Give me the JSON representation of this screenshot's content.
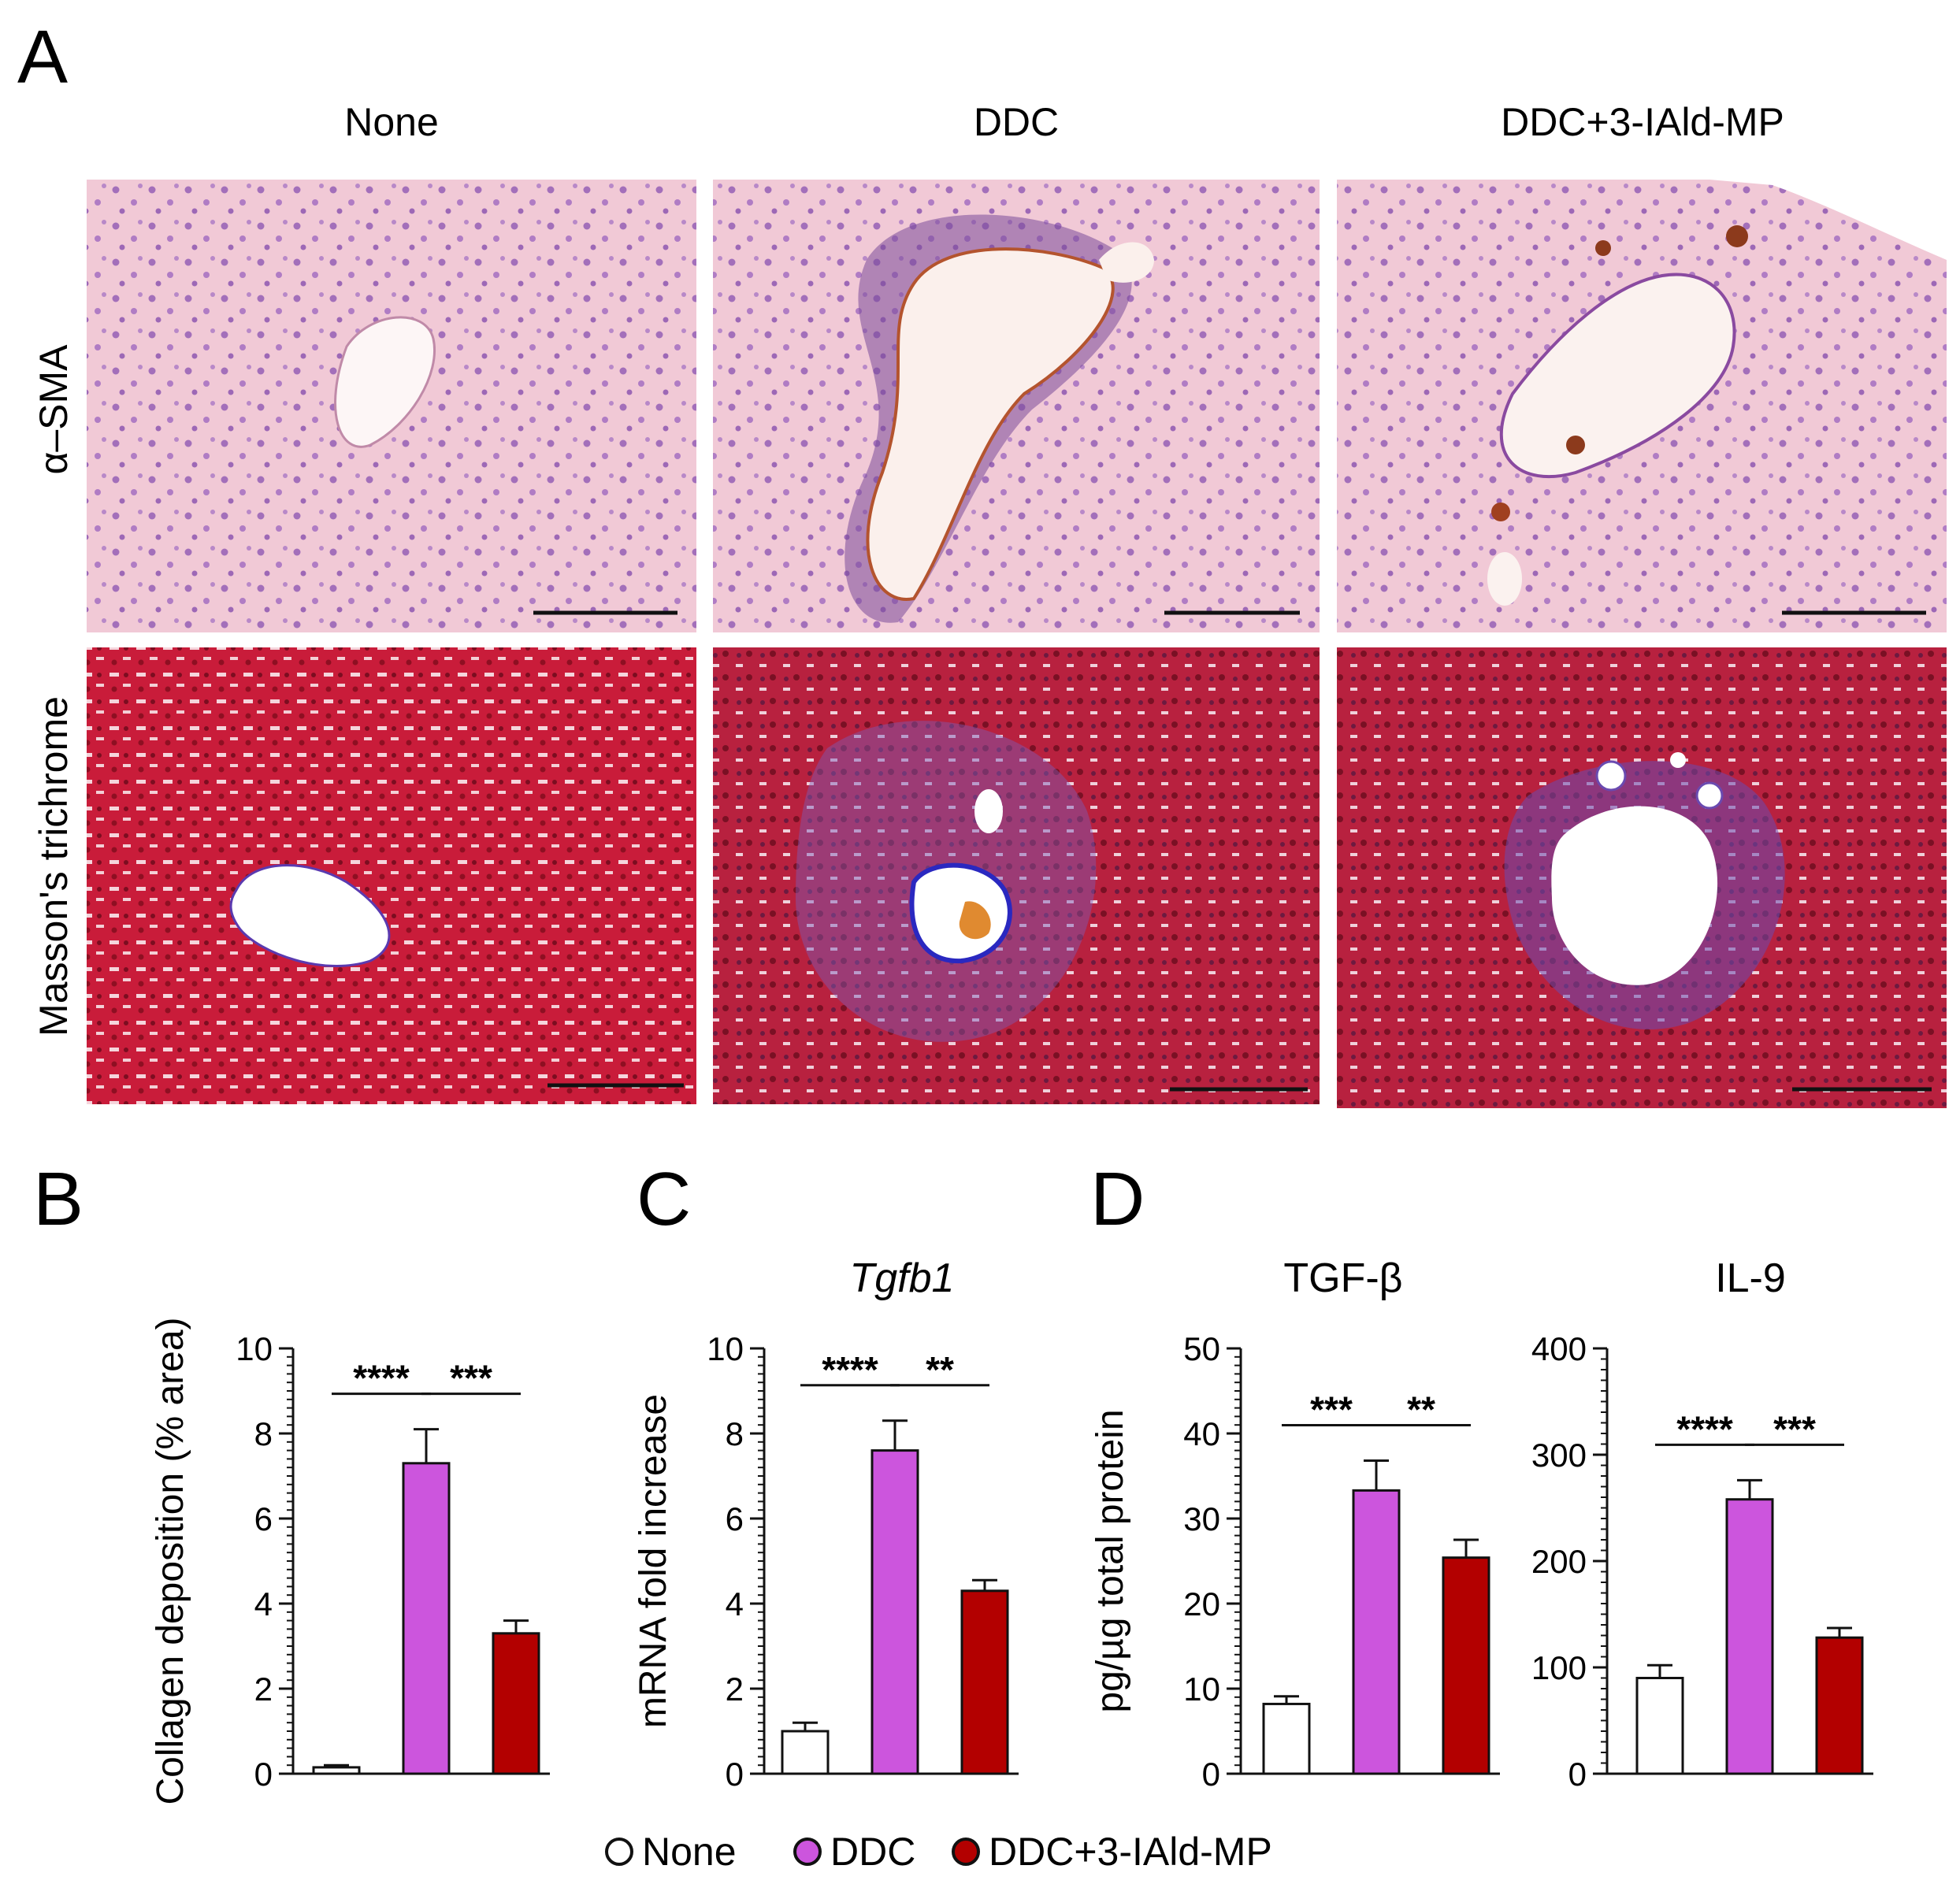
{
  "panels": {
    "A": "A",
    "B": "B",
    "C": "C",
    "D": "D"
  },
  "micrographs": {
    "columns": [
      "None",
      "DDC",
      "DDC+3-IAld-MP"
    ],
    "rows": [
      "α–SMA",
      "Masson's trichrome"
    ]
  },
  "colors": {
    "None": "#ffffff",
    "DDC": "#cc55dd",
    "DDC+3-IAld-MP": "#b30000",
    "he_bg": "#f0c6d4",
    "he_nuclei": "#a070b8",
    "trichrome_bg": "#cc1f3c",
    "trichrome_dark": "#8e0f22",
    "collagen": "#6e55b8"
  },
  "legend": [
    {
      "label": "None"
    },
    {
      "label": "DDC"
    },
    {
      "label": "DDC+3-IAld-MP"
    }
  ],
  "chart_data": [
    {
      "type": "bar",
      "panel": "B",
      "title": "",
      "ylabel": "Collagen deposition (% area)",
      "categories": [
        "None",
        "DDC",
        "DDC+3-IAld-MP"
      ],
      "values": [
        0.15,
        7.3,
        3.3
      ],
      "errors": [
        0.05,
        0.8,
        0.3
      ],
      "ylim": [
        0,
        10
      ],
      "yticks": [
        "0",
        "2",
        "4",
        "6",
        "8",
        "10"
      ],
      "significance": [
        {
          "from": 0,
          "to": 1,
          "label": "****"
        },
        {
          "from": 1,
          "to": 2,
          "label": "***"
        }
      ]
    },
    {
      "type": "bar",
      "panel": "C",
      "title": "Tgfb1",
      "ylabel": "mRNA fold increase",
      "categories": [
        "None",
        "DDC",
        "DDC+3-IAld-MP"
      ],
      "values": [
        1.0,
        7.6,
        4.3
      ],
      "errors": [
        0.2,
        0.7,
        0.25
      ],
      "ylim": [
        0,
        10
      ],
      "yticks": [
        "0",
        "2",
        "4",
        "6",
        "8",
        "10"
      ],
      "significance": [
        {
          "from": 0,
          "to": 1,
          "label": "****"
        },
        {
          "from": 1,
          "to": 2,
          "label": "**"
        }
      ]
    },
    {
      "type": "bar",
      "panel": "D",
      "title": "TGF-β",
      "ylabel": "pg/µg total protein",
      "categories": [
        "None",
        "DDC",
        "DDC+3-IAld-MP"
      ],
      "values": [
        8.2,
        33.3,
        25.4
      ],
      "errors": [
        0.9,
        3.5,
        2.1
      ],
      "ylim": [
        0,
        50
      ],
      "yticks": [
        "0",
        "10",
        "20",
        "30",
        "40",
        "50"
      ],
      "significance": [
        {
          "from": 0,
          "to": 1,
          "label": "***"
        },
        {
          "from": 1,
          "to": 2,
          "label": "**"
        }
      ]
    },
    {
      "type": "bar",
      "panel": "D",
      "title": "IL-9",
      "ylabel": "",
      "categories": [
        "None",
        "DDC",
        "DDC+3-IAld-MP"
      ],
      "values": [
        90,
        258,
        128
      ],
      "errors": [
        12,
        18,
        9
      ],
      "ylim": [
        0,
        400
      ],
      "yticks": [
        "0",
        "100",
        "200",
        "300",
        "400"
      ],
      "significance": [
        {
          "from": 0,
          "to": 1,
          "label": "****"
        },
        {
          "from": 1,
          "to": 2,
          "label": "***"
        }
      ]
    }
  ]
}
